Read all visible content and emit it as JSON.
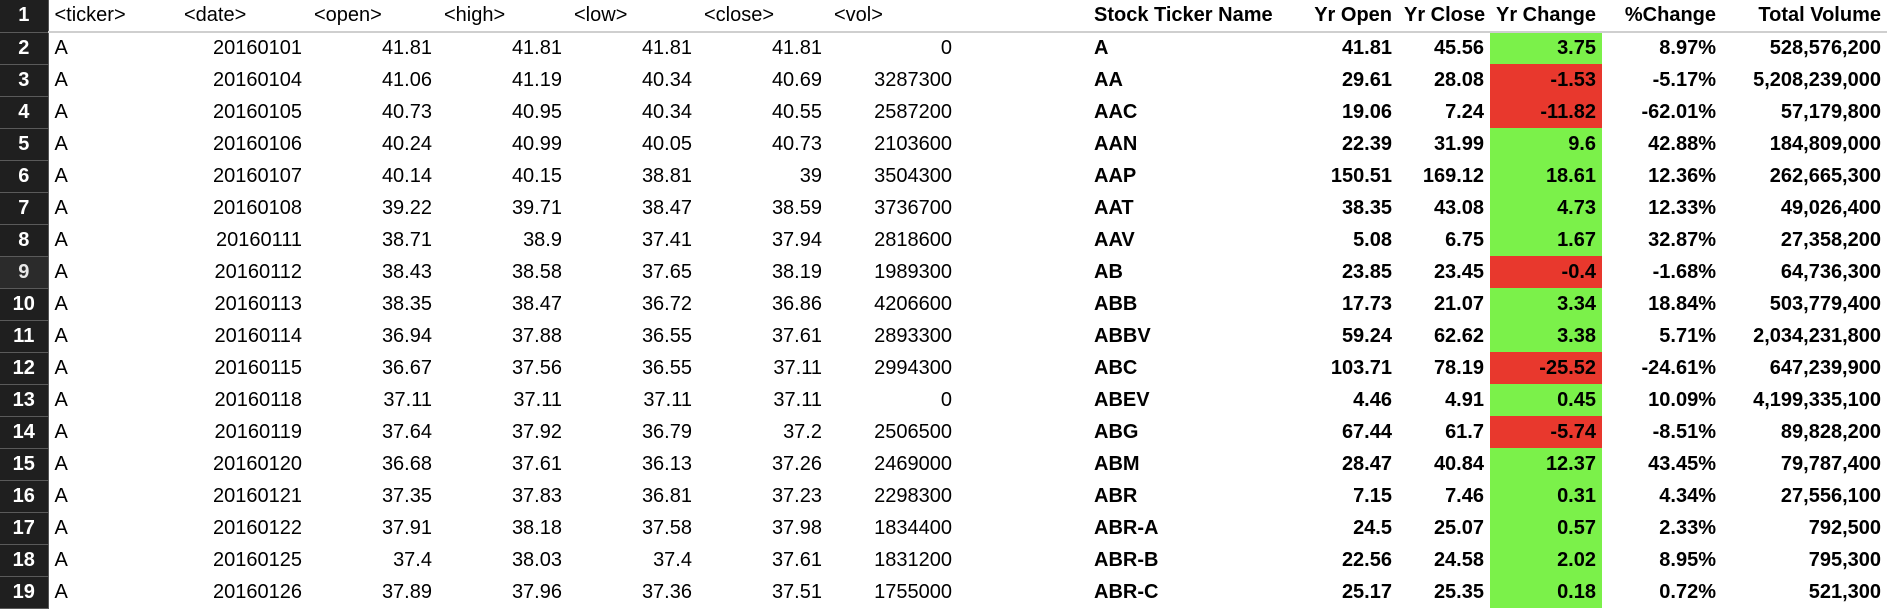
{
  "colors": {
    "positive": "#7bf14a",
    "negative": "#e8382d",
    "row_header_bg": "#1f1f1f"
  },
  "selected_row": 9,
  "headers": {
    "row_number": "1",
    "ticker": "<ticker>",
    "date": "<date>",
    "open": "<open>",
    "high": "<high>",
    "low": "<low>",
    "close": "<close>",
    "vol": "<vol>",
    "stock_ticker_name": "Stock Ticker Name",
    "yr_open": "Yr Open",
    "yr_close": "Yr Close",
    "yr_change": "Yr Change",
    "pct_change": "%Change",
    "total_volume": "Total Volume"
  },
  "rows": [
    {
      "n": "2",
      "ticker": "A",
      "date": "20160101",
      "open": "41.81",
      "high": "41.81",
      "low": "41.81",
      "close": "41.81",
      "vol": "0",
      "name": "A",
      "yr_open": "41.81",
      "yr_close": "45.56",
      "yr_change": "3.75",
      "pct": "8.97%",
      "total": "528,576,200"
    },
    {
      "n": "3",
      "ticker": "A",
      "date": "20160104",
      "open": "41.06",
      "high": "41.19",
      "low": "40.34",
      "close": "40.69",
      "vol": "3287300",
      "name": "AA",
      "yr_open": "29.61",
      "yr_close": "28.08",
      "yr_change": "-1.53",
      "pct": "-5.17%",
      "total": "5,208,239,000"
    },
    {
      "n": "4",
      "ticker": "A",
      "date": "20160105",
      "open": "40.73",
      "high": "40.95",
      "low": "40.34",
      "close": "40.55",
      "vol": "2587200",
      "name": "AAC",
      "yr_open": "19.06",
      "yr_close": "7.24",
      "yr_change": "-11.82",
      "pct": "-62.01%",
      "total": "57,179,800"
    },
    {
      "n": "5",
      "ticker": "A",
      "date": "20160106",
      "open": "40.24",
      "high": "40.99",
      "low": "40.05",
      "close": "40.73",
      "vol": "2103600",
      "name": "AAN",
      "yr_open": "22.39",
      "yr_close": "31.99",
      "yr_change": "9.6",
      "pct": "42.88%",
      "total": "184,809,000"
    },
    {
      "n": "6",
      "ticker": "A",
      "date": "20160107",
      "open": "40.14",
      "high": "40.15",
      "low": "38.81",
      "close": "39",
      "vol": "3504300",
      "name": "AAP",
      "yr_open": "150.51",
      "yr_close": "169.12",
      "yr_change": "18.61",
      "pct": "12.36%",
      "total": "262,665,300"
    },
    {
      "n": "7",
      "ticker": "A",
      "date": "20160108",
      "open": "39.22",
      "high": "39.71",
      "low": "38.47",
      "close": "38.59",
      "vol": "3736700",
      "name": "AAT",
      "yr_open": "38.35",
      "yr_close": "43.08",
      "yr_change": "4.73",
      "pct": "12.33%",
      "total": "49,026,400"
    },
    {
      "n": "8",
      "ticker": "A",
      "date": "20160111",
      "open": "38.71",
      "high": "38.9",
      "low": "37.41",
      "close": "37.94",
      "vol": "2818600",
      "name": "AAV",
      "yr_open": "5.08",
      "yr_close": "6.75",
      "yr_change": "1.67",
      "pct": "32.87%",
      "total": "27,358,200"
    },
    {
      "n": "9",
      "ticker": "A",
      "date": "20160112",
      "open": "38.43",
      "high": "38.58",
      "low": "37.65",
      "close": "38.19",
      "vol": "1989300",
      "name": "AB",
      "yr_open": "23.85",
      "yr_close": "23.45",
      "yr_change": "-0.4",
      "pct": "-1.68%",
      "total": "64,736,300"
    },
    {
      "n": "10",
      "ticker": "A",
      "date": "20160113",
      "open": "38.35",
      "high": "38.47",
      "low": "36.72",
      "close": "36.86",
      "vol": "4206600",
      "name": "ABB",
      "yr_open": "17.73",
      "yr_close": "21.07",
      "yr_change": "3.34",
      "pct": "18.84%",
      "total": "503,779,400"
    },
    {
      "n": "11",
      "ticker": "A",
      "date": "20160114",
      "open": "36.94",
      "high": "37.88",
      "low": "36.55",
      "close": "37.61",
      "vol": "2893300",
      "name": "ABBV",
      "yr_open": "59.24",
      "yr_close": "62.62",
      "yr_change": "3.38",
      "pct": "5.71%",
      "total": "2,034,231,800"
    },
    {
      "n": "12",
      "ticker": "A",
      "date": "20160115",
      "open": "36.67",
      "high": "37.56",
      "low": "36.55",
      "close": "37.11",
      "vol": "2994300",
      "name": "ABC",
      "yr_open": "103.71",
      "yr_close": "78.19",
      "yr_change": "-25.52",
      "pct": "-24.61%",
      "total": "647,239,900"
    },
    {
      "n": "13",
      "ticker": "A",
      "date": "20160118",
      "open": "37.11",
      "high": "37.11",
      "low": "37.11",
      "close": "37.11",
      "vol": "0",
      "name": "ABEV",
      "yr_open": "4.46",
      "yr_close": "4.91",
      "yr_change": "0.45",
      "pct": "10.09%",
      "total": "4,199,335,100"
    },
    {
      "n": "14",
      "ticker": "A",
      "date": "20160119",
      "open": "37.64",
      "high": "37.92",
      "low": "36.79",
      "close": "37.2",
      "vol": "2506500",
      "name": "ABG",
      "yr_open": "67.44",
      "yr_close": "61.7",
      "yr_change": "-5.74",
      "pct": "-8.51%",
      "total": "89,828,200"
    },
    {
      "n": "15",
      "ticker": "A",
      "date": "20160120",
      "open": "36.68",
      "high": "37.61",
      "low": "36.13",
      "close": "37.26",
      "vol": "2469000",
      "name": "ABM",
      "yr_open": "28.47",
      "yr_close": "40.84",
      "yr_change": "12.37",
      "pct": "43.45%",
      "total": "79,787,400"
    },
    {
      "n": "16",
      "ticker": "A",
      "date": "20160121",
      "open": "37.35",
      "high": "37.83",
      "low": "36.81",
      "close": "37.23",
      "vol": "2298300",
      "name": "ABR",
      "yr_open": "7.15",
      "yr_close": "7.46",
      "yr_change": "0.31",
      "pct": "4.34%",
      "total": "27,556,100"
    },
    {
      "n": "17",
      "ticker": "A",
      "date": "20160122",
      "open": "37.91",
      "high": "38.18",
      "low": "37.58",
      "close": "37.98",
      "vol": "1834400",
      "name": "ABR-A",
      "yr_open": "24.5",
      "yr_close": "25.07",
      "yr_change": "0.57",
      "pct": "2.33%",
      "total": "792,500"
    },
    {
      "n": "18",
      "ticker": "A",
      "date": "20160125",
      "open": "37.4",
      "high": "38.03",
      "low": "37.4",
      "close": "37.61",
      "vol": "1831200",
      "name": "ABR-B",
      "yr_open": "22.56",
      "yr_close": "24.58",
      "yr_change": "2.02",
      "pct": "8.95%",
      "total": "795,300"
    },
    {
      "n": "19",
      "ticker": "A",
      "date": "20160126",
      "open": "37.89",
      "high": "37.96",
      "low": "37.36",
      "close": "37.51",
      "vol": "1755000",
      "name": "ABR-C",
      "yr_open": "25.17",
      "yr_close": "25.35",
      "yr_change": "0.18",
      "pct": "0.72%",
      "total": "521,300"
    }
  ]
}
